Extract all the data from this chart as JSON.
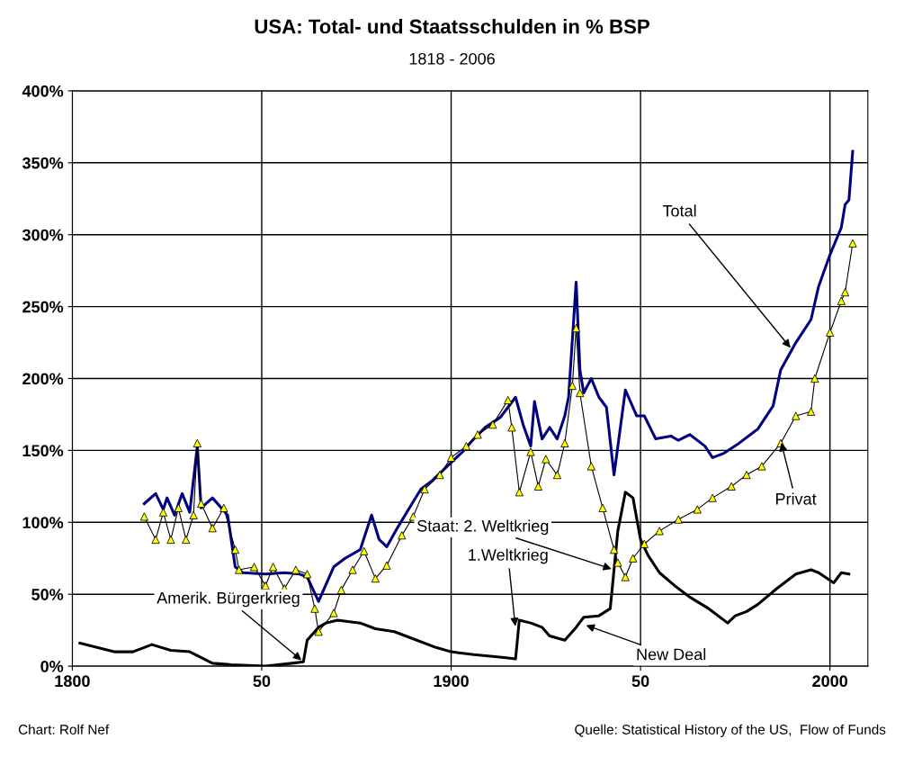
{
  "chart_data": {
    "type": "line",
    "title": "USA: Total- und Staatsschulden in % BSP",
    "subtitle": "1818 - 2006",
    "xlim": [
      1800,
      2010
    ],
    "xticks": [
      1800,
      {
        "value": 1850,
        "label": "50"
      },
      1900,
      {
        "value": 1950,
        "label": "50"
      },
      2000
    ],
    "ylim": [
      0,
      400
    ],
    "yticks": [
      {
        "value": 0,
        "label": "0%"
      },
      {
        "value": 50,
        "label": "50%"
      },
      {
        "value": 100,
        "label": "100%"
      },
      {
        "value": 150,
        "label": "150%"
      },
      {
        "value": 200,
        "label": "200%"
      },
      {
        "value": 250,
        "label": "250%"
      },
      {
        "value": 300,
        "label": "300%"
      },
      {
        "value": 350,
        "label": "350%"
      },
      {
        "value": 400,
        "label": "400%"
      }
    ],
    "grid": true,
    "marker": "none",
    "series": [
      {
        "color": "#000080",
        "x": [
          1819,
          1822,
          1824,
          1825,
          1827,
          1829,
          1831,
          1833,
          1834,
          1837,
          1841,
          1843,
          1845,
          1851,
          1856,
          1860,
          1862,
          1865,
          1869,
          1872,
          1876,
          1878,
          1879,
          1881,
          1883,
          1886,
          1889,
          1892,
          1895,
          1899,
          1903,
          1906,
          1909,
          1913,
          1915,
          1917,
          1919,
          1921,
          1922,
          1924,
          1926,
          1928,
          1930,
          1931,
          1933,
          1934,
          1935,
          1937,
          1939,
          1941,
          1943,
          1946,
          1949,
          1951,
          1954,
          1958,
          1960,
          1963,
          1967,
          1969,
          1972,
          1976,
          1981,
          1985,
          1987,
          1991,
          1995,
          1997,
          2000,
          2003,
          2004,
          2005,
          2006
        ],
        "values": [
          113,
          120,
          109,
          117,
          105,
          120,
          107,
          153,
          110,
          117,
          105,
          69,
          65,
          64,
          65,
          64,
          62,
          45,
          69,
          75,
          81,
          97,
          105,
          88,
          83,
          97,
          110,
          123,
          129,
          139,
          149,
          158,
          166,
          173,
          180,
          187,
          168,
          153,
          184,
          158,
          166,
          158,
          174,
          187,
          267,
          206,
          190,
          200,
          187,
          180,
          133,
          192,
          174,
          174,
          158,
          160,
          157,
          161,
          153,
          145,
          148,
          155,
          165,
          181,
          206,
          225,
          241,
          264,
          286,
          305,
          321,
          324,
          358
        ]
      },
      {
        "color": "#ffff00",
        "marker": "triangle",
        "x": [
          1819,
          1822,
          1824,
          1826,
          1828,
          1830,
          1832,
          1833,
          1834,
          1837,
          1840,
          1843,
          1844,
          1848,
          1851,
          1853,
          1856,
          1859,
          1862,
          1864,
          1865,
          1869,
          1871,
          1874,
          1877,
          1880,
          1883,
          1887,
          1890,
          1893,
          1897,
          1900,
          1904,
          1907,
          1911,
          1915,
          1916,
          1918,
          1921,
          1923,
          1925,
          1928,
          1930,
          1932,
          1933,
          1934,
          1937,
          1940,
          1943,
          1944,
          1946,
          1948,
          1951,
          1955,
          1960,
          1965,
          1969,
          1974,
          1978,
          1982,
          1987,
          1991,
          1995,
          1996,
          2000,
          2003,
          2004,
          2006
        ],
        "values": [
          104,
          88,
          107,
          88,
          110,
          88,
          105,
          155,
          113,
          96,
          110,
          81,
          67,
          69,
          56,
          69,
          54,
          67,
          64,
          40,
          24,
          37,
          53,
          67,
          80,
          61,
          70,
          91,
          104,
          123,
          133,
          145,
          153,
          161,
          168,
          185,
          166,
          121,
          149,
          125,
          144,
          133,
          155,
          195,
          235,
          190,
          139,
          110,
          81,
          72,
          62,
          75,
          85,
          94,
          102,
          109,
          117,
          125,
          133,
          139,
          155,
          174,
          177,
          200,
          232,
          254,
          260,
          294
        ]
      },
      {
        "color": "#000000",
        "x": [
          1802,
          1811,
          1816,
          1821,
          1826,
          1831,
          1837,
          1842,
          1851,
          1858,
          1861,
          1862,
          1865,
          1867,
          1870,
          1876,
          1880,
          1885,
          1890,
          1896,
          1900,
          1906,
          1914,
          1917,
          1918,
          1921,
          1924,
          1926,
          1930,
          1933,
          1935,
          1939,
          1942,
          1943,
          1944,
          1946,
          1948,
          1950,
          1952,
          1955,
          1959,
          1963,
          1968,
          1973,
          1975,
          1978,
          1981,
          1986,
          1991,
          1995,
          1997,
          2001,
          2003,
          2005
        ],
        "values": [
          16,
          10,
          10,
          15,
          11,
          10,
          2,
          1,
          0,
          2,
          3,
          18,
          27,
          30,
          32,
          30,
          26,
          24,
          19,
          13,
          10,
          8,
          6,
          5,
          32,
          30,
          27,
          21,
          18,
          27,
          34,
          35,
          40,
          67,
          94,
          121,
          117,
          88,
          77,
          65,
          56,
          48,
          40,
          30,
          35,
          38,
          43,
          54,
          64,
          67,
          65,
          58,
          65,
          64
        ]
      }
    ],
    "annotations": [
      {
        "text": "Total",
        "x": 1990,
        "y": 220
      },
      {
        "text": "Privat",
        "x": 1987,
        "y": 157
      },
      {
        "text": "New Deal",
        "x": 1935,
        "y": 29
      },
      {
        "text": "1.Weltkrieg",
        "x": 1917,
        "y": 26
      },
      {
        "text": "Staat: 2. Weltkrieg",
        "x": 1943,
        "y": 67
      },
      {
        "text": "Amerik. Bürgerkrieg",
        "x": 1861,
        "y": 3
      },
      "Chart: Rolf Nef",
      "Quelle: Statistical History of the US,  Flow of Funds"
    ]
  }
}
